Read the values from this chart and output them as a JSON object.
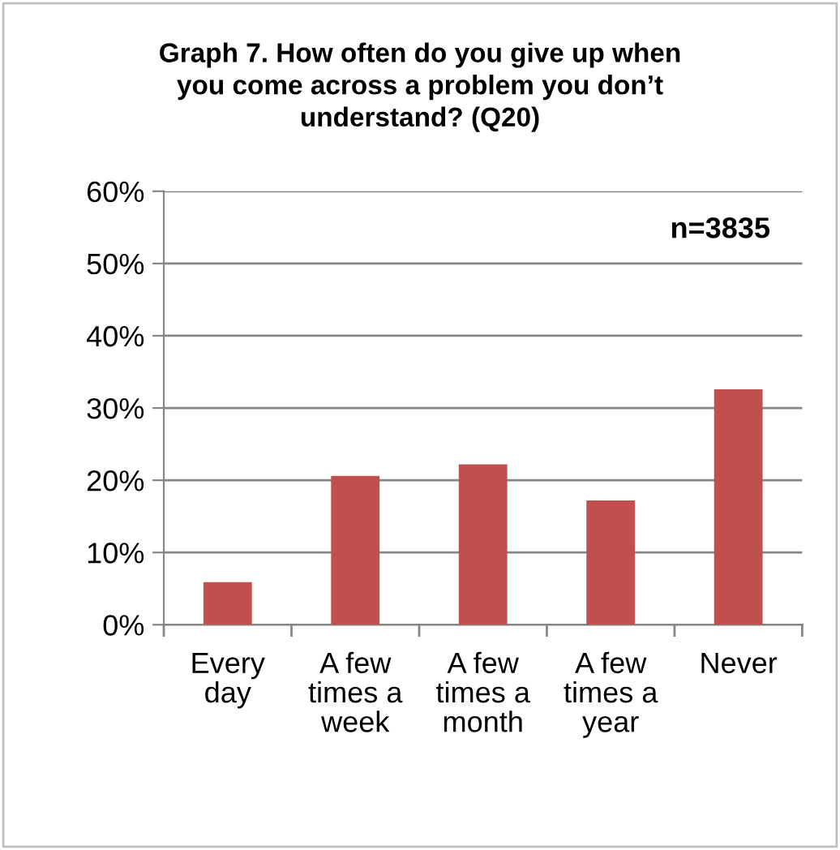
{
  "chart_data": {
    "type": "bar",
    "title": "Graph 7. How often do you give up when\nyou come across a problem you don’t\nunderstand? (Q20)",
    "categories": [
      "Every\nday",
      "A few\ntimes a\nweek",
      "A few\ntimes a\nmonth",
      "A few\ntimes a\nyear",
      "Never"
    ],
    "values": [
      5.9,
      20.6,
      22.2,
      17.2,
      32.6
    ],
    "color": "#c0504d",
    "ylim": [
      0,
      60
    ],
    "yticks": [
      {
        "value": 0,
        "label": "0%"
      },
      {
        "value": 10,
        "label": "10%"
      },
      {
        "value": 20,
        "label": "20%"
      },
      {
        "value": 30,
        "label": "30%"
      },
      {
        "value": 40,
        "label": "40%"
      },
      {
        "value": 50,
        "label": "50%"
      },
      {
        "value": 60,
        "label": "60%"
      }
    ],
    "grid": "y",
    "annotations": [
      "n=3835"
    ]
  }
}
